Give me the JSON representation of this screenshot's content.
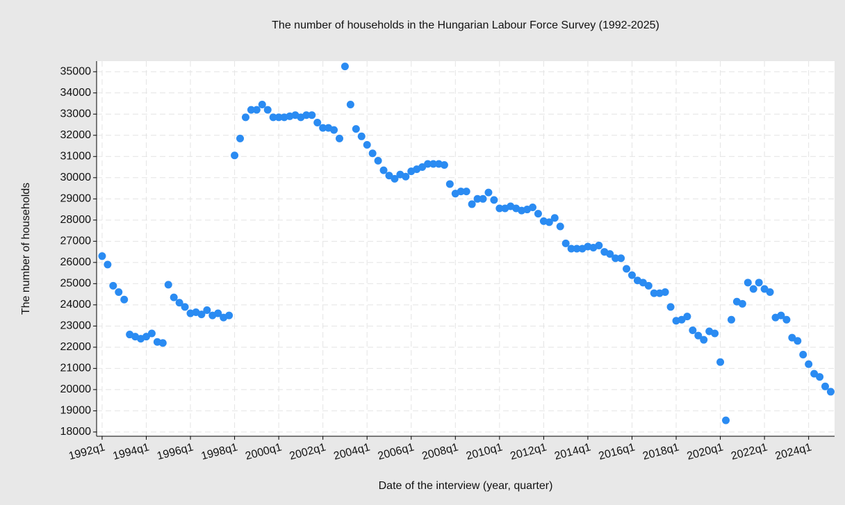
{
  "chart_data": {
    "type": "scatter",
    "title": "The number of households in the Hungarian Labour Force Survey (1992-2025)",
    "x_label": "Date of the interview (year, quarter)",
    "y_label": "The number of households",
    "color": "#2a8bf2",
    "grid": true,
    "categories": [
      "1992q1",
      null,
      null,
      null,
      null,
      null,
      null,
      null,
      "1994q1",
      null,
      null,
      null,
      null,
      null,
      null,
      null,
      "1996q1",
      null,
      null,
      null,
      null,
      null,
      null,
      null,
      "1998q1",
      null,
      null,
      null,
      null,
      null,
      null,
      null,
      "2000q1",
      null,
      null,
      null,
      null,
      null,
      null,
      null,
      "2002q1",
      null,
      null,
      null,
      null,
      null,
      null,
      null,
      "2004q1",
      null,
      null,
      null,
      null,
      null,
      null,
      null,
      "2006q1",
      null,
      null,
      null,
      null,
      null,
      null,
      null,
      "2008q1",
      null,
      null,
      null,
      null,
      null,
      null,
      null,
      "2010q1",
      null,
      null,
      null,
      null,
      null,
      null,
      null,
      "2012q1",
      null,
      null,
      null,
      null,
      null,
      null,
      null,
      "2014q1",
      null,
      null,
      null,
      null,
      null,
      null,
      null,
      "2016q1",
      null,
      null,
      null,
      null,
      null,
      null,
      null,
      "2018q1",
      null,
      null,
      null,
      null,
      null,
      null,
      null,
      "2020q1",
      null,
      null,
      null,
      null,
      null,
      null,
      null,
      "2022q1",
      null,
      null,
      null,
      null,
      null,
      null,
      null,
      "2024q1",
      null,
      null,
      null,
      null
    ],
    "values": [
      26300,
      25900,
      24900,
      24600,
      24250,
      22600,
      22500,
      22400,
      22500,
      22650,
      22250,
      22200,
      24950,
      24350,
      24100,
      23900,
      23600,
      23650,
      23550,
      23750,
      23500,
      23600,
      23400,
      23500,
      31050,
      31850,
      32850,
      33200,
      33200,
      33450,
      33200,
      32850,
      32850,
      32850,
      32900,
      32950,
      32850,
      32950,
      32950,
      32600,
      32350,
      32350,
      32250,
      31850,
      35250,
      33450,
      32300,
      31950,
      31550,
      31150,
      30800,
      30350,
      30100,
      29950,
      30150,
      30050,
      30300,
      30400,
      30500,
      30650,
      30650,
      30650,
      30600,
      29700,
      29250,
      29350,
      29350,
      28750,
      29000,
      29000,
      29300,
      28950,
      28550,
      28550,
      28650,
      28550,
      28450,
      28500,
      28600,
      28300,
      27950,
      27900,
      28100,
      27700,
      26900,
      26650,
      26650,
      26650,
      26750,
      26700,
      26800,
      26500,
      26400,
      26200,
      26200,
      25700,
      25400,
      25150,
      25050,
      24900,
      24550,
      24550,
      24600,
      23900,
      23250,
      23300,
      23450,
      22800,
      22550,
      22350,
      22750,
      22650,
      21300,
      18550,
      23300,
      24150,
      24050,
      25050,
      24750,
      25050,
      24750,
      24600,
      23400,
      23500,
      23300,
      22450,
      22300,
      21650,
      21200,
      20750,
      20600,
      20150,
      19900
    ],
    "ylim": [
      17800,
      35500
    ],
    "yticks": [
      18000,
      19000,
      20000,
      21000,
      22000,
      23000,
      24000,
      25000,
      26000,
      27000,
      28000,
      29000,
      30000,
      31000,
      32000,
      33000,
      34000,
      35000
    ]
  }
}
